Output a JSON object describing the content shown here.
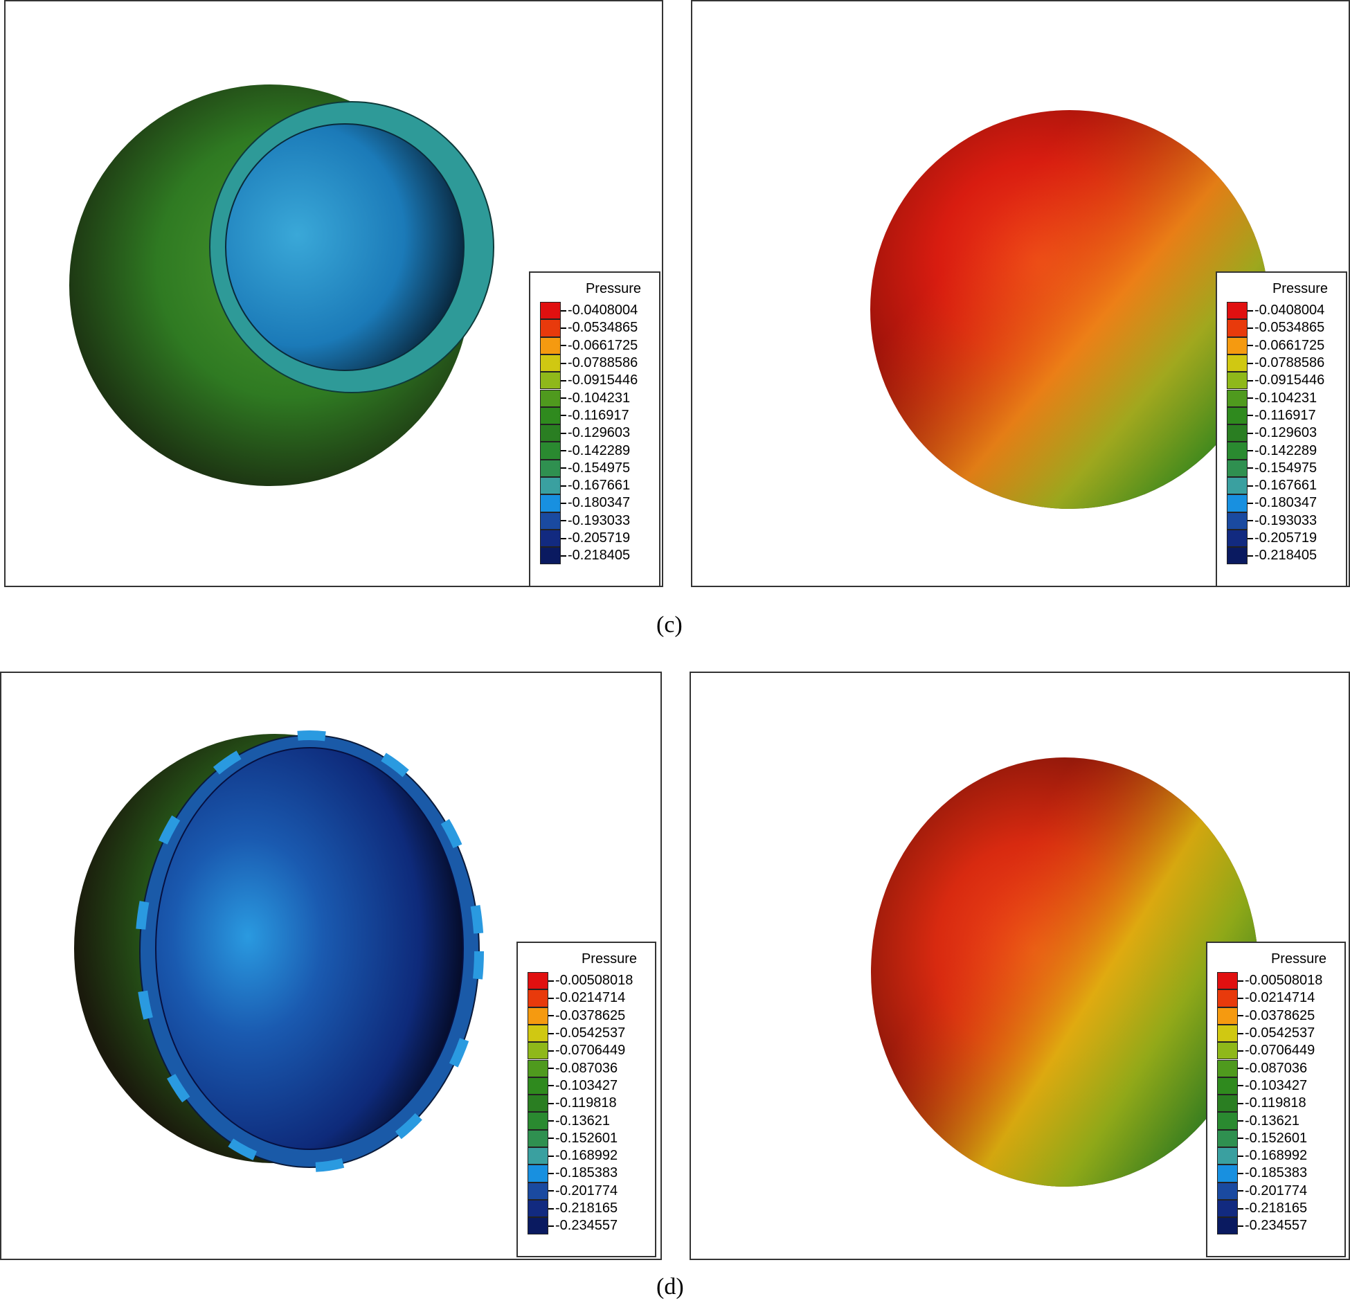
{
  "figures": {
    "c": {
      "caption": "(c)",
      "legend_title": "Pressure",
      "levels": [
        "-0.0408004",
        "-0.0534865",
        "-0.0661725",
        "-0.0788586",
        "-0.0915446",
        "-0.104231",
        "-0.116917",
        "-0.129603",
        "-0.142289",
        "-0.154975",
        "-0.167661",
        "-0.180347",
        "-0.193033",
        "-0.205719",
        "-0.218405"
      ]
    },
    "d": {
      "caption": "(d)",
      "legend_title": "Pressure",
      "levels": [
        "-0.00508018",
        "-0.0214714",
        "-0.0378625",
        "-0.0542537",
        "-0.0706449",
        "-0.087036",
        "-0.103427",
        "-0.119818",
        "-0.13621",
        "-0.152601",
        "-0.168992",
        "-0.185383",
        "-0.201774",
        "-0.218165",
        "-0.234557"
      ]
    }
  },
  "colors": {
    "colormap": [
      "#e01010",
      "#e83a0c",
      "#f59a10",
      "#d0c812",
      "#8fb81a",
      "#4f9a1e",
      "#2f8a1e",
      "#2a7e22",
      "#2a8a30",
      "#2f9050",
      "#3aa0a0",
      "#1890e0",
      "#1a4aa0",
      "#122a80",
      "#0a1a60"
    ]
  }
}
